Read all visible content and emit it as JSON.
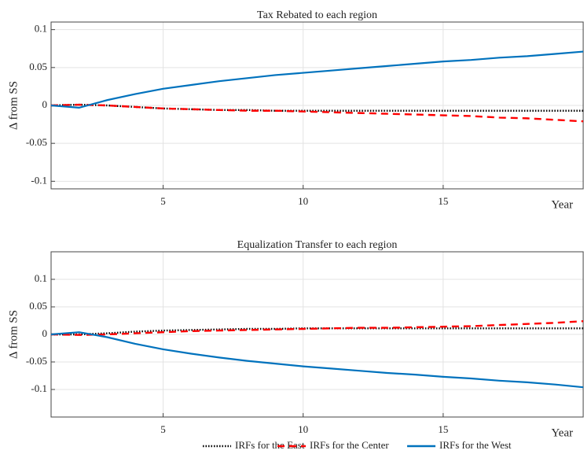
{
  "chart_data": [
    {
      "type": "line",
      "title": "Tax Rebated to each region",
      "xlabel": "Year",
      "ylabel": "Δ from SS",
      "x": [
        1,
        2,
        3,
        4,
        5,
        6,
        7,
        8,
        9,
        10,
        11,
        12,
        13,
        14,
        15,
        16,
        17,
        18,
        19,
        20
      ],
      "xlim": [
        1,
        20
      ],
      "xticks": [
        5,
        10,
        15
      ],
      "ylim": [
        -0.11,
        0.11
      ],
      "yticks": [
        0.1,
        0.05,
        0,
        -0.05,
        -0.1
      ],
      "grid": true,
      "series": [
        {
          "name": "IRFs for the East",
          "color": "#000000",
          "style": "dotted",
          "values": [
            0,
            0.001,
            0,
            -0.002,
            -0.004,
            -0.005,
            -0.006,
            -0.006,
            -0.007,
            -0.007,
            -0.007,
            -0.007,
            -0.007,
            -0.007,
            -0.007,
            -0.007,
            -0.007,
            -0.007,
            -0.007,
            -0.007
          ]
        },
        {
          "name": "IRFs for the Center",
          "color": "#ff0000",
          "style": "dashed",
          "values": [
            0,
            0.001,
            0,
            -0.002,
            -0.004,
            -0.005,
            -0.006,
            -0.007,
            -0.007,
            -0.008,
            -0.009,
            -0.01,
            -0.011,
            -0.012,
            -0.013,
            -0.014,
            -0.016,
            -0.017,
            -0.019,
            -0.021
          ]
        },
        {
          "name": "IRFs for the West",
          "color": "#0072bd",
          "style": "solid",
          "values": [
            0,
            -0.003,
            0.007,
            0.015,
            0.022,
            0.027,
            0.032,
            0.036,
            0.04,
            0.043,
            0.046,
            0.049,
            0.052,
            0.055,
            0.058,
            0.06,
            0.063,
            0.065,
            0.068,
            0.071
          ]
        }
      ]
    },
    {
      "type": "line",
      "title": "Equalization Transfer to each region",
      "xlabel": "Year",
      "ylabel": "Δ from SS",
      "x": [
        1,
        2,
        3,
        4,
        5,
        6,
        7,
        8,
        9,
        10,
        11,
        12,
        13,
        14,
        15,
        16,
        17,
        18,
        19,
        20
      ],
      "xlim": [
        1,
        20
      ],
      "xticks": [
        5,
        10,
        15
      ],
      "ylim": [
        -0.15,
        0.15
      ],
      "yticks": [
        0.1,
        0.05,
        0,
        -0.05,
        -0.1
      ],
      "grid": true,
      "series": [
        {
          "color": "#000000",
          "style": "dotted",
          "values": [
            0,
            0,
            0.002,
            0.005,
            0.007,
            0.008,
            0.009,
            0.01,
            0.01,
            0.011,
            0.011,
            0.011,
            0.011,
            0.011,
            0.011,
            0.011,
            0.011,
            0.011,
            0.011,
            0.011
          ]
        },
        {
          "color": "#ff0000",
          "style": "dashed",
          "values": [
            0,
            -0.001,
            0,
            0.002,
            0.004,
            0.006,
            0.007,
            0.008,
            0.009,
            0.01,
            0.011,
            0.012,
            0.012,
            0.013,
            0.014,
            0.015,
            0.017,
            0.019,
            0.021,
            0.024
          ]
        },
        {
          "color": "#0072bd",
          "style": "solid",
          "values": [
            0,
            0.004,
            -0.005,
            -0.017,
            -0.027,
            -0.035,
            -0.042,
            -0.048,
            -0.053,
            -0.058,
            -0.062,
            -0.066,
            -0.07,
            -0.073,
            -0.077,
            -0.08,
            -0.084,
            -0.087,
            -0.091,
            -0.096
          ]
        }
      ]
    }
  ]
}
